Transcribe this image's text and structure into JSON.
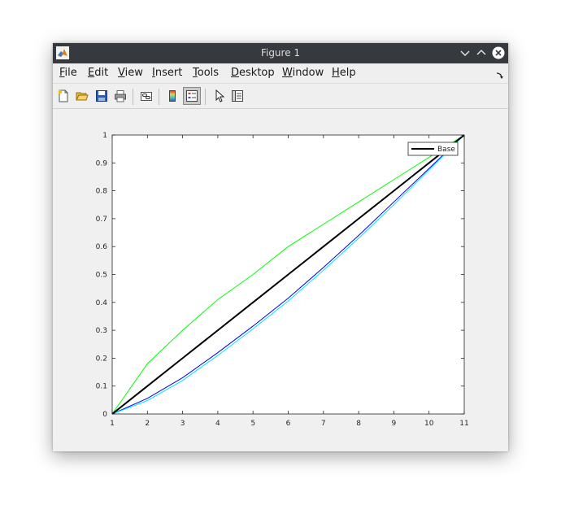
{
  "window": {
    "title": "Figure 1"
  },
  "menu": [
    {
      "label": "File"
    },
    {
      "label": "Edit"
    },
    {
      "label": "View"
    },
    {
      "label": "Insert"
    },
    {
      "label": "Tools"
    },
    {
      "label": "Desktop"
    },
    {
      "label": "Window"
    },
    {
      "label": "Help"
    }
  ],
  "toolbar": {
    "icons": [
      "new-figure-icon",
      "open-icon",
      "save-icon",
      "print-icon",
      "link-plot-icon",
      "insert-colorbar-icon",
      "insert-legend-icon",
      "edit-plot-pointer-icon",
      "property-inspector-icon"
    ],
    "legend_toggle_pressed": true
  },
  "chart_data": {
    "type": "line",
    "xlim": [
      1,
      11
    ],
    "ylim": [
      0,
      1
    ],
    "xticks": [
      1,
      2,
      3,
      4,
      5,
      6,
      7,
      8,
      9,
      10,
      11
    ],
    "yticks": [
      0,
      0.1,
      0.2,
      0.3,
      0.4,
      0.5,
      0.6,
      0.7,
      0.8,
      0.9,
      1
    ],
    "grid": false,
    "legend": {
      "location": "top-right",
      "entries": [
        "Base"
      ]
    },
    "x": [
      1,
      2,
      3,
      4,
      5,
      6,
      7,
      8,
      9,
      10,
      11
    ],
    "series": [
      {
        "name": "Base",
        "color": "#000000",
        "width": 2,
        "values": [
          0,
          0.1,
          0.2,
          0.3,
          0.4,
          0.5,
          0.6,
          0.7,
          0.8,
          0.9,
          1.0
        ]
      },
      {
        "color": "#00ff00",
        "width": 1,
        "values": [
          0,
          0.18,
          0.3,
          0.41,
          0.5,
          0.6,
          0.68,
          0.76,
          0.84,
          0.92,
          1.0
        ]
      },
      {
        "color": "#0000ff",
        "width": 1,
        "values": [
          0,
          0.056,
          0.13,
          0.22,
          0.315,
          0.415,
          0.525,
          0.64,
          0.76,
          0.88,
          1.0
        ]
      },
      {
        "color": "#00e5ff",
        "width": 1,
        "values": [
          0,
          0.048,
          0.12,
          0.21,
          0.305,
          0.405,
          0.515,
          0.63,
          0.75,
          0.875,
          1.0
        ]
      }
    ]
  }
}
